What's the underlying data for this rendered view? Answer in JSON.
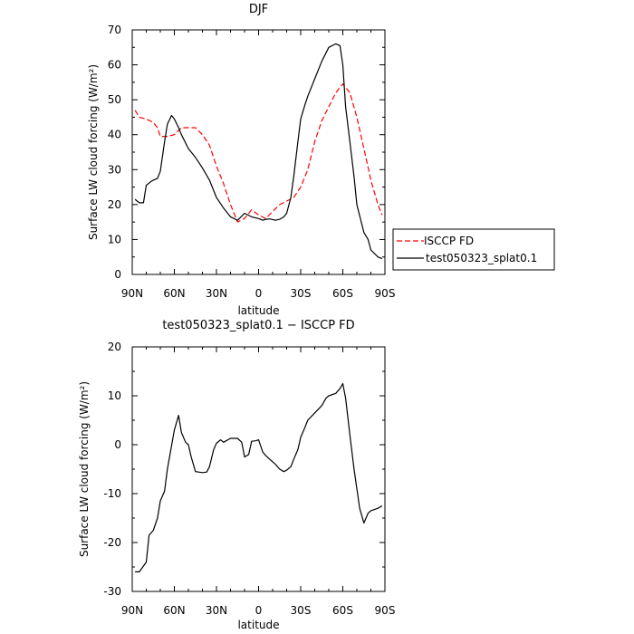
{
  "chart_data": [
    {
      "type": "line",
      "title": "DJF",
      "xlabel": "latitude",
      "ylabel": "Surface LW cloud forcing (W/m²)",
      "xlim": [
        -90,
        90
      ],
      "ylim": [
        0,
        70
      ],
      "x_ticks": [
        {
          "value": -90,
          "label": "90N"
        },
        {
          "value": -60,
          "label": "60N"
        },
        {
          "value": -30,
          "label": "30N"
        },
        {
          "value": 0,
          "label": "0"
        },
        {
          "value": 30,
          "label": "30S"
        },
        {
          "value": 60,
          "label": "60S"
        },
        {
          "value": 90,
          "label": "90S"
        }
      ],
      "y_ticks": [
        0,
        10,
        20,
        30,
        40,
        50,
        60,
        70
      ],
      "legend": "right",
      "series": [
        {
          "name": "ISCCP FD",
          "color": "#ff0000",
          "dash": "dashed",
          "x": [
            -88,
            -85,
            -80,
            -75,
            -72,
            -70,
            -65,
            -60,
            -55,
            -50,
            -45,
            -40,
            -35,
            -30,
            -25,
            -20,
            -15,
            -10,
            -5,
            0,
            5,
            10,
            15,
            20,
            25,
            30,
            35,
            40,
            45,
            50,
            55,
            60,
            65,
            70,
            75,
            80,
            85,
            88
          ],
          "values": [
            47,
            45,
            44.5,
            43.5,
            42,
            39.5,
            39.5,
            40,
            42,
            42,
            42,
            40,
            37,
            31,
            26,
            20,
            15,
            16,
            18.5,
            17,
            16,
            18,
            20,
            21,
            22,
            25,
            30,
            38,
            44,
            48,
            52,
            54.5,
            52,
            45,
            36,
            27,
            20,
            17
          ]
        },
        {
          "name": "test050323_splat0.1",
          "color": "#000000",
          "dash": "solid",
          "x": [
            -88,
            -85,
            -82,
            -80,
            -77,
            -75,
            -72,
            -70,
            -67,
            -65,
            -62,
            -60,
            -57,
            -55,
            -50,
            -45,
            -40,
            -35,
            -30,
            -25,
            -20,
            -15,
            -10,
            -5,
            0,
            3,
            5,
            8,
            12,
            15,
            18,
            20,
            23,
            25,
            28,
            30,
            33,
            35,
            40,
            45,
            50,
            55,
            58,
            60,
            62,
            65,
            68,
            70,
            75,
            78,
            80,
            85,
            88
          ],
          "values": [
            21.5,
            20.5,
            20.5,
            25.5,
            26.5,
            27,
            27.5,
            29.5,
            38,
            43,
            45.5,
            44.5,
            42,
            40,
            36,
            33.5,
            30.5,
            27,
            22,
            19,
            16.5,
            15.5,
            17.5,
            16.5,
            16,
            15.5,
            15.8,
            15.9,
            15.5,
            15.8,
            16.5,
            17.5,
            22,
            28,
            38,
            44.5,
            48.5,
            51,
            56,
            61,
            65,
            66,
            65.5,
            60,
            48,
            38,
            28,
            20,
            12,
            10,
            7,
            5,
            4.5
          ]
        }
      ]
    },
    {
      "type": "line",
      "title": "test050323_splat0.1 − ISCCP FD",
      "xlabel": "latitude",
      "ylabel": "Surface LW cloud forcing (W/m²)",
      "xlim": [
        -90,
        90
      ],
      "ylim": [
        -30,
        20
      ],
      "x_ticks": [
        {
          "value": -90,
          "label": "90N"
        },
        {
          "value": -60,
          "label": "60N"
        },
        {
          "value": -30,
          "label": "30N"
        },
        {
          "value": 0,
          "label": "0"
        },
        {
          "value": 30,
          "label": "30S"
        },
        {
          "value": 60,
          "label": "60S"
        },
        {
          "value": 90,
          "label": "90S"
        }
      ],
      "y_ticks": [
        -30,
        -20,
        -10,
        0,
        10,
        20
      ],
      "series": [
        {
          "name": "",
          "color": "#000000",
          "dash": "solid",
          "x": [
            -88,
            -85,
            -80,
            -78,
            -75,
            -72,
            -70,
            -67,
            -65,
            -60,
            -57,
            -55,
            -52,
            -50,
            -48,
            -45,
            -40,
            -37,
            -35,
            -32,
            -30,
            -27,
            -25,
            -20,
            -15,
            -12,
            -10,
            -7,
            -5,
            -2,
            0,
            3,
            5,
            8,
            12,
            15,
            18,
            20,
            23,
            25,
            28,
            30,
            33,
            35,
            40,
            45,
            48,
            50,
            55,
            58,
            60,
            62,
            65,
            68,
            70,
            72,
            75,
            78,
            80,
            85,
            88
          ],
          "values": [
            -26,
            -26,
            -24,
            -18.5,
            -17.5,
            -15,
            -11.5,
            -9.5,
            -5,
            3,
            6,
            2.5,
            0.5,
            0,
            -2.5,
            -5.5,
            -5.7,
            -5.6,
            -4.5,
            -1,
            0.3,
            1,
            0.5,
            1.3,
            1.3,
            0.5,
            -2.5,
            -2,
            0.7,
            0.8,
            1,
            -1.5,
            -2.2,
            -3,
            -4,
            -5,
            -5.5,
            -5.2,
            -4.5,
            -3,
            -1,
            1.5,
            3.5,
            5,
            6.5,
            8,
            9.5,
            10,
            10.5,
            11.5,
            12.5,
            9.5,
            2,
            -5,
            -9,
            -13,
            -16,
            -14,
            -13.5,
            -13,
            -12.5
          ]
        }
      ]
    }
  ]
}
